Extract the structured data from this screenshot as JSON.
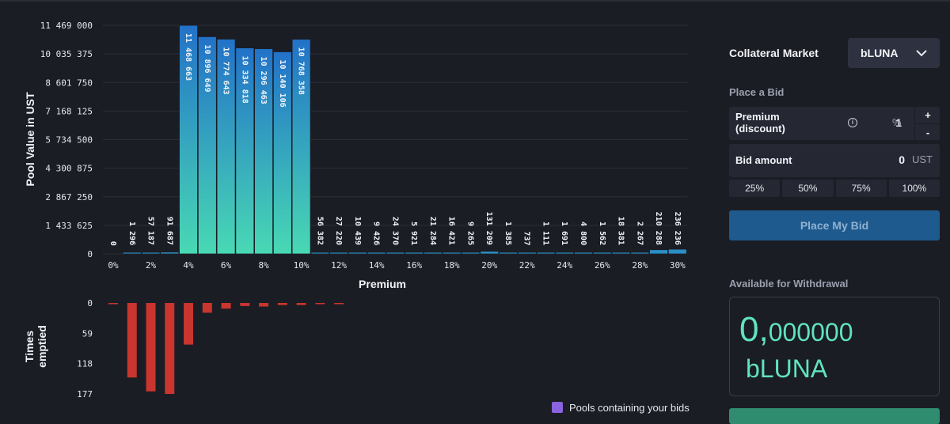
{
  "chart_data": [
    {
      "type": "bar",
      "ylabel": "Pool Value in UST",
      "xlabel": "Premium",
      "ylim": [
        0,
        11469000
      ],
      "yticks": [
        "0",
        "1 433 625",
        "2 867 250",
        "4 300 875",
        "5 734 500",
        "7 168 125",
        "8 601 750",
        "10 035 375",
        "11 469 000"
      ],
      "xticks": [
        "0%",
        "2%",
        "4%",
        "6%",
        "8%",
        "10%",
        "12%",
        "14%",
        "16%",
        "18%",
        "20%",
        "22%",
        "24%",
        "26%",
        "28%",
        "30%"
      ],
      "categories": [
        "0%",
        "1%",
        "2%",
        "3%",
        "4%",
        "5%",
        "6%",
        "7%",
        "8%",
        "9%",
        "10%",
        "11%",
        "12%",
        "13%",
        "14%",
        "15%",
        "16%",
        "17%",
        "18%",
        "19%",
        "20%",
        "21%",
        "22%",
        "23%",
        "24%",
        "25%",
        "26%",
        "27%",
        "28%",
        "29%",
        "30%"
      ],
      "values": [
        0,
        1296,
        57187,
        91687,
        11468663,
        10896649,
        10774643,
        10334818,
        10296463,
        10140106,
        10768358,
        56382,
        27220,
        10439,
        9426,
        24370,
        5921,
        21284,
        16421,
        9265,
        131209,
        1385,
        737,
        1111,
        1691,
        4800,
        1562,
        18381,
        2267,
        210288,
        236236
      ],
      "labels": [
        "0",
        "1 296",
        "57 187",
        "91 687",
        "11 468 663",
        "10 896 649",
        "10 774 643",
        "10 334 818",
        "10 296 463",
        "10 140 106",
        "10 768 358",
        "56 382",
        "27 220",
        "10 439",
        "9 426",
        "24 370",
        "5 921",
        "21 284",
        "16 421",
        "9 265",
        "131 209",
        "1 385",
        "737",
        "1 111",
        "1 691",
        "4 800",
        "1 562",
        "18 381",
        "2 267",
        "210 288",
        "236 236"
      ],
      "grid": true,
      "colors": {
        "bar_top": "#2272c8",
        "bar_bottom": "#49d9b4",
        "grid": "#2b2e37",
        "axis_text": "#e6e8ee"
      }
    },
    {
      "type": "bar",
      "ylabel": "Times emptied",
      "ylim": [
        0,
        177
      ],
      "yticks": [
        "0",
        "59",
        "118",
        "177"
      ],
      "values": [
        2,
        145,
        172,
        177,
        81,
        19,
        11,
        6,
        7,
        4,
        4,
        2,
        2
      ],
      "color": "#c9352f"
    }
  ],
  "legend": {
    "label": "Pools containing your bids",
    "color": "#8a63e0"
  },
  "panel": {
    "collateral_label": "Collateral Market",
    "collateral_value": "bLUNA",
    "place_bid_title": "Place a Bid",
    "premium_label_1": "Premium",
    "premium_label_2": "(discount)",
    "premium_value": "1",
    "premium_unit": "%",
    "plus": "+",
    "minus": "-",
    "bid_amount_label": "Bid amount",
    "bid_amount_value": "0",
    "bid_amount_unit": "UST",
    "pct_buttons": [
      "25%",
      "50%",
      "75%",
      "100%"
    ],
    "place_button": "Place My Bid",
    "available_title": "Available for Withdrawal",
    "available_int": "0,",
    "available_dec": "000000",
    "available_unit": "bLUNA"
  }
}
